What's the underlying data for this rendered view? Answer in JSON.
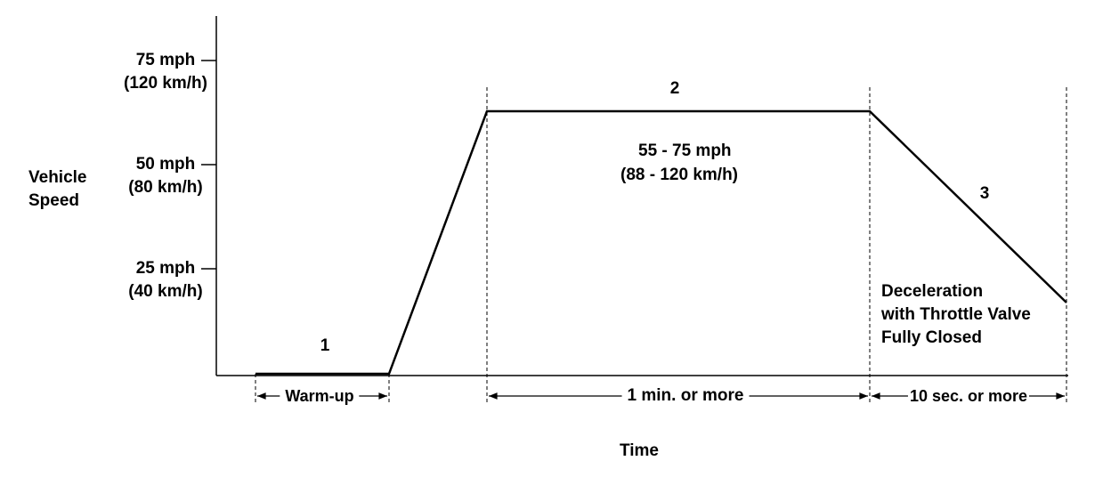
{
  "y_axis": {
    "label": "Vehicle Speed",
    "ticks": [
      {
        "speed": "75 mph",
        "metric": "(120 km/h)"
      },
      {
        "speed": "50 mph",
        "metric": "(80 km/h)"
      },
      {
        "speed": "25 mph",
        "metric": "(40 km/h)"
      }
    ]
  },
  "x_axis": {
    "label": "Time"
  },
  "phases": [
    {
      "number": "1",
      "duration": "Warm-up"
    },
    {
      "number": "2",
      "duration": "1 min. or more",
      "note": [
        "55 - 75 mph",
        "(88 - 120 km/h)"
      ]
    },
    {
      "number": "3",
      "duration": "10 sec. or more",
      "note": [
        "Deceleration",
        "with Throttle Valve",
        "Fully Closed"
      ]
    }
  ]
}
